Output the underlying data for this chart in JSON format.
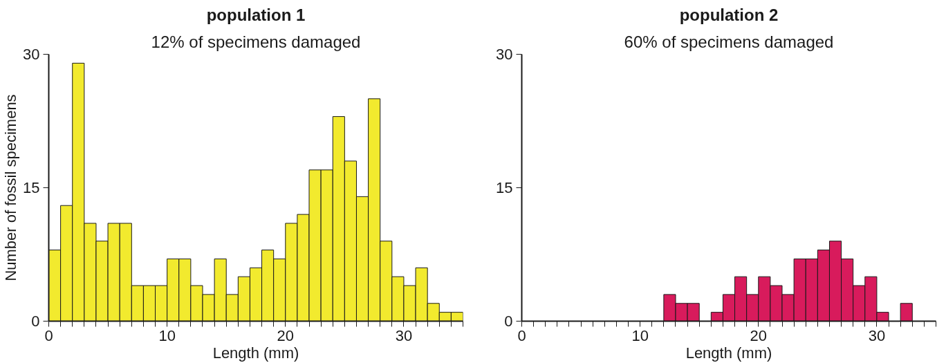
{
  "chart_data": [
    {
      "type": "histogram",
      "title": "population 1",
      "subtitle": "12% of specimens damaged",
      "xlabel": "Length (mm)",
      "ylabel": "Number of fossil specimens",
      "color": "#f2ea2e",
      "bins": [
        0,
        1,
        2,
        3,
        4,
        5,
        6,
        7,
        8,
        9,
        10,
        11,
        12,
        13,
        14,
        15,
        16,
        17,
        18,
        19,
        20,
        21,
        22,
        23,
        24,
        25,
        26,
        27,
        28,
        29,
        30,
        31,
        32,
        33,
        34,
        35
      ],
      "values": [
        8,
        13,
        29,
        11,
        9,
        11,
        11,
        4,
        4,
        4,
        7,
        7,
        4,
        3,
        7,
        3,
        5,
        6,
        8,
        7,
        11,
        12,
        17,
        17,
        23,
        18,
        14,
        25,
        9,
        5,
        4,
        6,
        2,
        1,
        1
      ],
      "xlim": [
        0,
        35
      ],
      "ylim": [
        0,
        30
      ],
      "yticks": [
        0,
        15,
        30
      ],
      "xticks": [
        0,
        {
          "value": 1,
          "label": null
        },
        {
          "value": 2,
          "label": null
        },
        {
          "value": 3,
          "label": null
        },
        {
          "value": 4,
          "label": null
        },
        {
          "value": 5,
          "label": null
        },
        {
          "value": 6,
          "label": null
        },
        {
          "value": 7,
          "label": null
        },
        {
          "value": 8,
          "label": null
        },
        {
          "value": 9,
          "label": null
        },
        10,
        {
          "value": 11,
          "label": null
        },
        {
          "value": 12,
          "label": null
        },
        {
          "value": 13,
          "label": null
        },
        {
          "value": 14,
          "label": null
        },
        {
          "value": 15,
          "label": null
        },
        {
          "value": 16,
          "label": null
        },
        {
          "value": 17,
          "label": null
        },
        {
          "value": 18,
          "label": null
        },
        {
          "value": 19,
          "label": null
        },
        20,
        {
          "value": 21,
          "label": null
        },
        {
          "value": 22,
          "label": null
        },
        {
          "value": 23,
          "label": null
        },
        {
          "value": 24,
          "label": null
        },
        {
          "value": 25,
          "label": null
        },
        {
          "value": 26,
          "label": null
        },
        {
          "value": 27,
          "label": null
        },
        {
          "value": 28,
          "label": null
        },
        {
          "value": 29,
          "label": null
        },
        30,
        {
          "value": 31,
          "label": null
        },
        {
          "value": 32,
          "label": null
        },
        {
          "value": 33,
          "label": null
        },
        {
          "value": 34,
          "label": null
        },
        {
          "value": 35,
          "label": null
        }
      ]
    },
    {
      "type": "histogram",
      "title": "population 2",
      "subtitle": "60% of specimens damaged",
      "xlabel": "Length (mm)",
      "color": "#d81b5c",
      "bins": [
        12,
        13,
        14,
        15,
        16,
        17,
        18,
        19,
        20,
        21,
        22,
        23,
        24,
        25,
        26,
        27,
        28,
        29,
        30,
        31,
        32,
        33
      ],
      "values": [
        3,
        2,
        2,
        0,
        1,
        3,
        5,
        3,
        5,
        4,
        3,
        7,
        7,
        8,
        9,
        7,
        4,
        5,
        1,
        0,
        2
      ],
      "xlim": [
        0,
        35
      ],
      "ylim": [
        0,
        30
      ],
      "yticks": [
        0,
        15,
        30
      ],
      "xticks": [
        0,
        {
          "value": 1,
          "label": null
        },
        {
          "value": 2,
          "label": null
        },
        {
          "value": 3,
          "label": null
        },
        {
          "value": 4,
          "label": null
        },
        {
          "value": 5,
          "label": null
        },
        {
          "value": 6,
          "label": null
        },
        {
          "value": 7,
          "label": null
        },
        {
          "value": 8,
          "label": null
        },
        {
          "value": 9,
          "label": null
        },
        10,
        {
          "value": 11,
          "label": null
        },
        {
          "value": 12,
          "label": null
        },
        {
          "value": 13,
          "label": null
        },
        {
          "value": 14,
          "label": null
        },
        {
          "value": 15,
          "label": null
        },
        {
          "value": 16,
          "label": null
        },
        {
          "value": 17,
          "label": null
        },
        {
          "value": 18,
          "label": null
        },
        {
          "value": 19,
          "label": null
        },
        20,
        {
          "value": 21,
          "label": null
        },
        {
          "value": 22,
          "label": null
        },
        {
          "value": 23,
          "label": null
        },
        {
          "value": 24,
          "label": null
        },
        {
          "value": 25,
          "label": null
        },
        {
          "value": 26,
          "label": null
        },
        {
          "value": 27,
          "label": null
        },
        {
          "value": 28,
          "label": null
        },
        {
          "value": 29,
          "label": null
        },
        30,
        {
          "value": 31,
          "label": null
        },
        {
          "value": 32,
          "label": null
        },
        {
          "value": 33,
          "label": null
        },
        {
          "value": 34,
          "label": null
        },
        {
          "value": 35,
          "label": null
        }
      ]
    }
  ]
}
